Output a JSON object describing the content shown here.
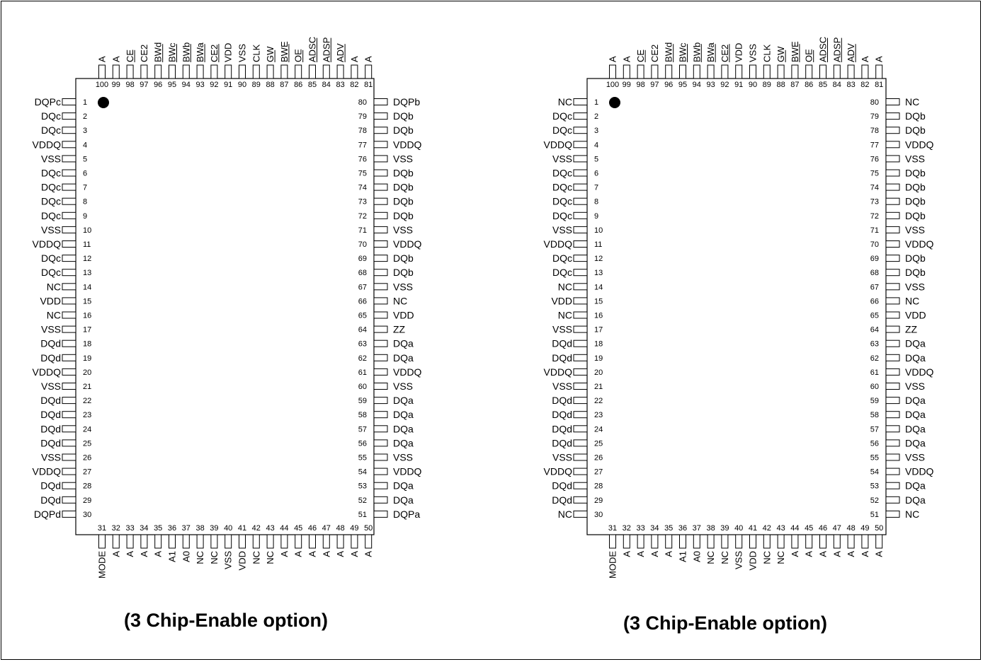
{
  "packages": [
    {
      "caption": "(3 Chip-Enable option)",
      "left_pins": [
        {
          "n": "1",
          "name": "DQPc"
        },
        {
          "n": "2",
          "name": "DQc"
        },
        {
          "n": "3",
          "name": "DQc"
        },
        {
          "n": "4",
          "name": "VDDQ"
        },
        {
          "n": "5",
          "name": "VSS"
        },
        {
          "n": "6",
          "name": "DQc"
        },
        {
          "n": "7",
          "name": "DQc"
        },
        {
          "n": "8",
          "name": "DQc"
        },
        {
          "n": "9",
          "name": "DQc"
        },
        {
          "n": "10",
          "name": "VSS"
        },
        {
          "n": "11",
          "name": "VDDQ"
        },
        {
          "n": "12",
          "name": "DQc"
        },
        {
          "n": "13",
          "name": "DQc"
        },
        {
          "n": "14",
          "name": "NC"
        },
        {
          "n": "15",
          "name": "VDD"
        },
        {
          "n": "16",
          "name": "NC"
        },
        {
          "n": "17",
          "name": "VSS"
        },
        {
          "n": "18",
          "name": "DQd"
        },
        {
          "n": "19",
          "name": "DQd"
        },
        {
          "n": "20",
          "name": "VDDQ"
        },
        {
          "n": "21",
          "name": "VSS"
        },
        {
          "n": "22",
          "name": "DQd"
        },
        {
          "n": "23",
          "name": "DQd"
        },
        {
          "n": "24",
          "name": "DQd"
        },
        {
          "n": "25",
          "name": "DQd"
        },
        {
          "n": "26",
          "name": "VSS"
        },
        {
          "n": "27",
          "name": "VDDQ"
        },
        {
          "n": "28",
          "name": "DQd"
        },
        {
          "n": "29",
          "name": "DQd"
        },
        {
          "n": "30",
          "name": "DQPd"
        }
      ],
      "right_pins": [
        {
          "n": "80",
          "name": "DQPb"
        },
        {
          "n": "79",
          "name": "DQb"
        },
        {
          "n": "78",
          "name": "DQb"
        },
        {
          "n": "77",
          "name": "VDDQ"
        },
        {
          "n": "76",
          "name": "VSS"
        },
        {
          "n": "75",
          "name": "DQb"
        },
        {
          "n": "74",
          "name": "DQb"
        },
        {
          "n": "73",
          "name": "DQb"
        },
        {
          "n": "72",
          "name": "DQb"
        },
        {
          "n": "71",
          "name": "VSS"
        },
        {
          "n": "70",
          "name": "VDDQ"
        },
        {
          "n": "69",
          "name": "DQb"
        },
        {
          "n": "68",
          "name": "DQb"
        },
        {
          "n": "67",
          "name": "VSS"
        },
        {
          "n": "66",
          "name": "NC"
        },
        {
          "n": "65",
          "name": "VDD"
        },
        {
          "n": "64",
          "name": "ZZ"
        },
        {
          "n": "63",
          "name": "DQa"
        },
        {
          "n": "62",
          "name": "DQa"
        },
        {
          "n": "61",
          "name": "VDDQ"
        },
        {
          "n": "60",
          "name": "VSS"
        },
        {
          "n": "59",
          "name": "DQa"
        },
        {
          "n": "58",
          "name": "DQa"
        },
        {
          "n": "57",
          "name": "DQa"
        },
        {
          "n": "56",
          "name": "DQa"
        },
        {
          "n": "55",
          "name": "VSS"
        },
        {
          "n": "54",
          "name": "VDDQ"
        },
        {
          "n": "53",
          "name": "DQa"
        },
        {
          "n": "52",
          "name": "DQa"
        },
        {
          "n": "51",
          "name": "DQPa"
        }
      ],
      "top_pins": [
        {
          "n": "100",
          "name": "A",
          "bar": false
        },
        {
          "n": "99",
          "name": "A",
          "bar": false
        },
        {
          "n": "98",
          "name": "CE",
          "bar": true
        },
        {
          "n": "97",
          "name": "CE2",
          "bar": false
        },
        {
          "n": "96",
          "name": "BWd",
          "bar": true
        },
        {
          "n": "95",
          "name": "BWc",
          "bar": true
        },
        {
          "n": "94",
          "name": "BWb",
          "bar": true
        },
        {
          "n": "93",
          "name": "BWa",
          "bar": true
        },
        {
          "n": "92",
          "name": "CE2",
          "bar": true
        },
        {
          "n": "91",
          "name": "VDD",
          "bar": false
        },
        {
          "n": "90",
          "name": "VSS",
          "bar": false
        },
        {
          "n": "89",
          "name": "CLK",
          "bar": false
        },
        {
          "n": "88",
          "name": "GW",
          "bar": true
        },
        {
          "n": "87",
          "name": "BWE",
          "bar": true
        },
        {
          "n": "86",
          "name": "OE",
          "bar": true
        },
        {
          "n": "85",
          "name": "ADSC",
          "bar": true
        },
        {
          "n": "84",
          "name": "ADSP",
          "bar": true
        },
        {
          "n": "83",
          "name": "ADV",
          "bar": true
        },
        {
          "n": "82",
          "name": "A",
          "bar": false
        },
        {
          "n": "81",
          "name": "A",
          "bar": false
        }
      ],
      "bottom_pins": [
        {
          "n": "31",
          "name": "MODE"
        },
        {
          "n": "32",
          "name": "A"
        },
        {
          "n": "33",
          "name": "A"
        },
        {
          "n": "34",
          "name": "A"
        },
        {
          "n": "35",
          "name": "A"
        },
        {
          "n": "36",
          "name": "A1"
        },
        {
          "n": "37",
          "name": "A0"
        },
        {
          "n": "38",
          "name": "NC"
        },
        {
          "n": "39",
          "name": "NC"
        },
        {
          "n": "40",
          "name": "VSS"
        },
        {
          "n": "41",
          "name": "VDD"
        },
        {
          "n": "42",
          "name": "NC"
        },
        {
          "n": "43",
          "name": "NC"
        },
        {
          "n": "44",
          "name": "A"
        },
        {
          "n": "45",
          "name": "A"
        },
        {
          "n": "46",
          "name": "A"
        },
        {
          "n": "47",
          "name": "A"
        },
        {
          "n": "48",
          "name": "A"
        },
        {
          "n": "49",
          "name": "A"
        },
        {
          "n": "50",
          "name": "A"
        }
      ]
    },
    {
      "caption": "(3 Chip-Enable option)",
      "left_pins": [
        {
          "n": "1",
          "name": "NC"
        },
        {
          "n": "2",
          "name": "DQc"
        },
        {
          "n": "3",
          "name": "DQc"
        },
        {
          "n": "4",
          "name": "VDDQ"
        },
        {
          "n": "5",
          "name": "VSS"
        },
        {
          "n": "6",
          "name": "DQc"
        },
        {
          "n": "7",
          "name": "DQc"
        },
        {
          "n": "8",
          "name": "DQc"
        },
        {
          "n": "9",
          "name": "DQc"
        },
        {
          "n": "10",
          "name": "VSS"
        },
        {
          "n": "11",
          "name": "VDDQ"
        },
        {
          "n": "12",
          "name": "DQc"
        },
        {
          "n": "13",
          "name": "DQc"
        },
        {
          "n": "14",
          "name": "NC"
        },
        {
          "n": "15",
          "name": "VDD"
        },
        {
          "n": "16",
          "name": "NC"
        },
        {
          "n": "17",
          "name": "VSS"
        },
        {
          "n": "18",
          "name": "DQd"
        },
        {
          "n": "19",
          "name": "DQd"
        },
        {
          "n": "20",
          "name": "VDDQ"
        },
        {
          "n": "21",
          "name": "VSS"
        },
        {
          "n": "22",
          "name": "DQd"
        },
        {
          "n": "23",
          "name": "DQd"
        },
        {
          "n": "24",
          "name": "DQd"
        },
        {
          "n": "25",
          "name": "DQd"
        },
        {
          "n": "26",
          "name": "VSS"
        },
        {
          "n": "27",
          "name": "VDDQ"
        },
        {
          "n": "28",
          "name": "DQd"
        },
        {
          "n": "29",
          "name": "DQd"
        },
        {
          "n": "30",
          "name": "NC"
        }
      ],
      "right_pins": [
        {
          "n": "80",
          "name": "NC"
        },
        {
          "n": "79",
          "name": "DQb"
        },
        {
          "n": "78",
          "name": "DQb"
        },
        {
          "n": "77",
          "name": "VDDQ"
        },
        {
          "n": "76",
          "name": "VSS"
        },
        {
          "n": "75",
          "name": "DQb"
        },
        {
          "n": "74",
          "name": "DQb"
        },
        {
          "n": "73",
          "name": "DQb"
        },
        {
          "n": "72",
          "name": "DQb"
        },
        {
          "n": "71",
          "name": "VSS"
        },
        {
          "n": "70",
          "name": "VDDQ"
        },
        {
          "n": "69",
          "name": "DQb"
        },
        {
          "n": "68",
          "name": "DQb"
        },
        {
          "n": "67",
          "name": "VSS"
        },
        {
          "n": "66",
          "name": "NC"
        },
        {
          "n": "65",
          "name": "VDD"
        },
        {
          "n": "64",
          "name": "ZZ"
        },
        {
          "n": "63",
          "name": "DQa"
        },
        {
          "n": "62",
          "name": "DQa"
        },
        {
          "n": "61",
          "name": "VDDQ"
        },
        {
          "n": "60",
          "name": "VSS"
        },
        {
          "n": "59",
          "name": "DQa"
        },
        {
          "n": "58",
          "name": "DQa"
        },
        {
          "n": "57",
          "name": "DQa"
        },
        {
          "n": "56",
          "name": "DQa"
        },
        {
          "n": "55",
          "name": "VSS"
        },
        {
          "n": "54",
          "name": "VDDQ"
        },
        {
          "n": "53",
          "name": "DQa"
        },
        {
          "n": "52",
          "name": "DQa"
        },
        {
          "n": "51",
          "name": "NC"
        }
      ],
      "top_pins": [
        {
          "n": "100",
          "name": "A",
          "bar": false
        },
        {
          "n": "99",
          "name": "A",
          "bar": false
        },
        {
          "n": "98",
          "name": "CE",
          "bar": true
        },
        {
          "n": "97",
          "name": "CE2",
          "bar": false
        },
        {
          "n": "96",
          "name": "BWd",
          "bar": true
        },
        {
          "n": "95",
          "name": "BWc",
          "bar": true
        },
        {
          "n": "94",
          "name": "BWb",
          "bar": true
        },
        {
          "n": "93",
          "name": "BWa",
          "bar": true
        },
        {
          "n": "92",
          "name": "CE2",
          "bar": true
        },
        {
          "n": "91",
          "name": "VDD",
          "bar": false
        },
        {
          "n": "90",
          "name": "VSS",
          "bar": false
        },
        {
          "n": "89",
          "name": "CLK",
          "bar": false
        },
        {
          "n": "88",
          "name": "GW",
          "bar": true
        },
        {
          "n": "87",
          "name": "BWE",
          "bar": true
        },
        {
          "n": "86",
          "name": "OE",
          "bar": true
        },
        {
          "n": "85",
          "name": "ADSC",
          "bar": true
        },
        {
          "n": "84",
          "name": "ADSP",
          "bar": true
        },
        {
          "n": "83",
          "name": "ADV",
          "bar": true
        },
        {
          "n": "82",
          "name": "A",
          "bar": false
        },
        {
          "n": "81",
          "name": "A",
          "bar": false
        }
      ],
      "bottom_pins": [
        {
          "n": "31",
          "name": "MODE"
        },
        {
          "n": "32",
          "name": "A"
        },
        {
          "n": "33",
          "name": "A"
        },
        {
          "n": "34",
          "name": "A"
        },
        {
          "n": "35",
          "name": "A"
        },
        {
          "n": "36",
          "name": "A1"
        },
        {
          "n": "37",
          "name": "A0"
        },
        {
          "n": "38",
          "name": "NC"
        },
        {
          "n": "39",
          "name": "NC"
        },
        {
          "n": "40",
          "name": "VSS"
        },
        {
          "n": "41",
          "name": "VDD"
        },
        {
          "n": "42",
          "name": "NC"
        },
        {
          "n": "43",
          "name": "NC"
        },
        {
          "n": "44",
          "name": "A"
        },
        {
          "n": "45",
          "name": "A"
        },
        {
          "n": "46",
          "name": "A"
        },
        {
          "n": "47",
          "name": "A"
        },
        {
          "n": "48",
          "name": "A"
        },
        {
          "n": "49",
          "name": "A"
        },
        {
          "n": "50",
          "name": "A"
        }
      ]
    }
  ]
}
